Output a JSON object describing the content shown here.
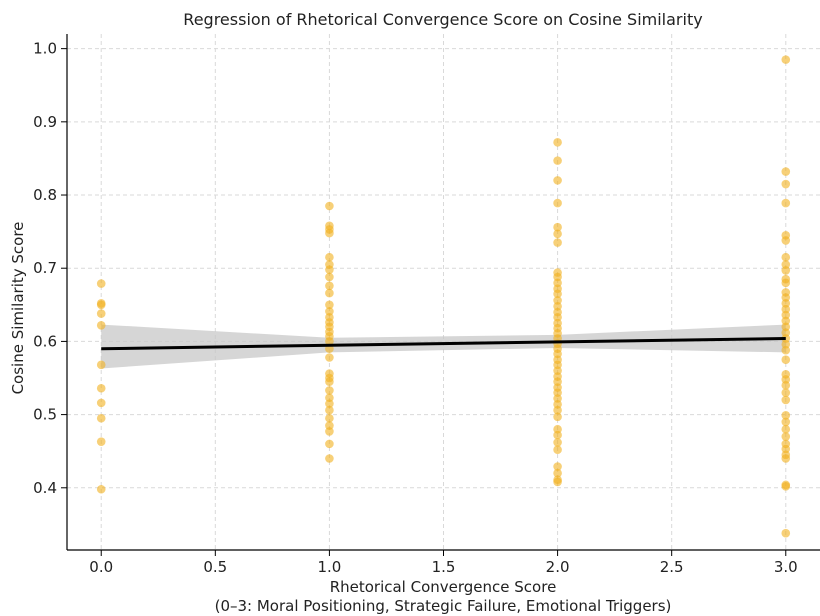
{
  "chart_data": {
    "type": "scatter",
    "title": "Regression of Rhetorical Convergence Score on Cosine Similarity",
    "xlabel": "Rhetorical Convergence Score",
    "xlabel_sub": "(0–3: Moral Positioning, Strategic Failure, Emotional Triggers)",
    "ylabel": "Cosine Similarity Score",
    "xlim": [
      -0.15,
      3.15
    ],
    "ylim": [
      0.315,
      1.02
    ],
    "xticks": [
      "0.0",
      "0.5",
      "1.0",
      "1.5",
      "2.0",
      "2.5",
      "3.0"
    ],
    "yticks": [
      "0.4",
      "0.5",
      "0.6",
      "0.7",
      "0.8",
      "0.9",
      "1.0"
    ],
    "grid": true,
    "colors": {
      "points": "#f2b01e",
      "regression_line": "#000000",
      "confidence_band": "#c8c8c8"
    },
    "points": [
      {
        "x": 0,
        "values": [
          0.679,
          0.652,
          0.65,
          0.638,
          0.622,
          0.568,
          0.536,
          0.516,
          0.495,
          0.463,
          0.398
        ]
      },
      {
        "x": 1,
        "values": [
          0.785,
          0.758,
          0.753,
          0.748,
          0.715,
          0.705,
          0.698,
          0.688,
          0.676,
          0.666,
          0.65,
          0.641,
          0.633,
          0.626,
          0.62,
          0.613,
          0.607,
          0.6,
          0.59,
          0.578,
          0.556,
          0.55,
          0.545,
          0.533,
          0.523,
          0.515,
          0.506,
          0.495,
          0.485,
          0.477,
          0.46,
          0.44
        ]
      },
      {
        "x": 2,
        "values": [
          0.872,
          0.847,
          0.82,
          0.789,
          0.756,
          0.747,
          0.735,
          0.694,
          0.688,
          0.68,
          0.672,
          0.665,
          0.656,
          0.648,
          0.64,
          0.633,
          0.625,
          0.618,
          0.611,
          0.604,
          0.597,
          0.59,
          0.583,
          0.575,
          0.568,
          0.56,
          0.552,
          0.545,
          0.537,
          0.53,
          0.522,
          0.514,
          0.506,
          0.497,
          0.48,
          0.472,
          0.462,
          0.452,
          0.429,
          0.42,
          0.411,
          0.408
        ]
      },
      {
        "x": 3,
        "values": [
          0.985,
          0.832,
          0.815,
          0.789,
          0.745,
          0.738,
          0.715,
          0.705,
          0.697,
          0.685,
          0.68,
          0.667,
          0.66,
          0.652,
          0.644,
          0.636,
          0.628,
          0.62,
          0.612,
          0.604,
          0.596,
          0.588,
          0.575,
          0.555,
          0.548,
          0.54,
          0.53,
          0.52,
          0.499,
          0.49,
          0.48,
          0.47,
          0.46,
          0.453,
          0.445,
          0.44,
          0.404,
          0.402,
          0.338
        ]
      }
    ],
    "regression": {
      "x": [
        0,
        3
      ],
      "y": [
        0.59,
        0.604
      ]
    },
    "confidence_band": {
      "x": [
        0,
        1,
        2,
        3
      ],
      "upper": [
        0.623,
        0.605,
        0.609,
        0.623
      ],
      "lower": [
        0.563,
        0.585,
        0.591,
        0.585
      ]
    }
  }
}
